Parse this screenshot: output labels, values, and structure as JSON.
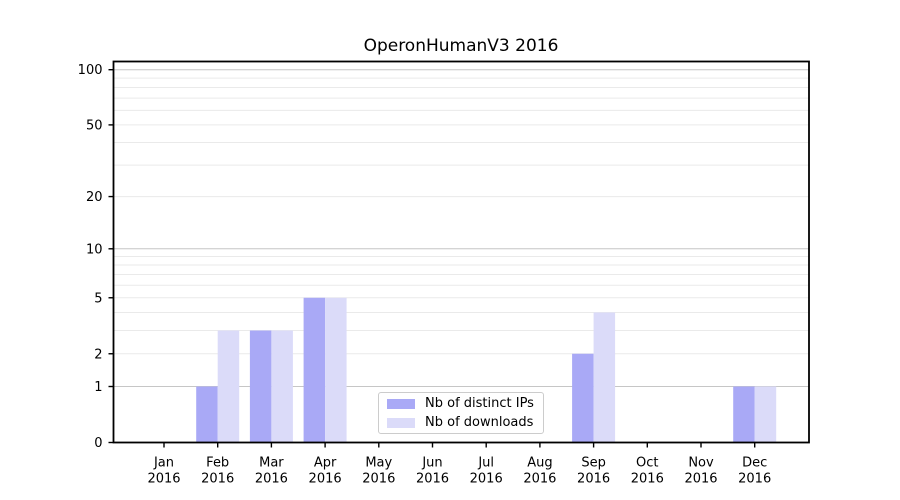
{
  "chart_data": {
    "type": "bar",
    "title": "OperonHumanV3 2016",
    "categories": [
      "Jan",
      "Feb",
      "Mar",
      "Apr",
      "May",
      "Jun",
      "Jul",
      "Aug",
      "Sep",
      "Oct",
      "Nov",
      "Dec"
    ],
    "category_year": "2016",
    "series": [
      {
        "name": "Nb of distinct IPs",
        "color": "#a9a9f6",
        "values": [
          0,
          1,
          3,
          5,
          0,
          0,
          0,
          0,
          2,
          0,
          0,
          1
        ]
      },
      {
        "name": "Nb of downloads",
        "color": "#dbdbf9",
        "values": [
          0,
          3,
          3,
          5,
          0,
          0,
          0,
          0,
          4,
          0,
          0,
          1
        ]
      }
    ],
    "y_axis": {
      "scale": "log1p",
      "tick_labels": [
        "0",
        "1",
        "2",
        "5",
        "10",
        "20",
        "50",
        "100"
      ],
      "tick_values": [
        0,
        1,
        2,
        5,
        10,
        20,
        50,
        100
      ],
      "major_gridlines": [
        1,
        10,
        100
      ],
      "minor_gridlines": [
        2,
        3,
        4,
        5,
        6,
        7,
        8,
        9,
        20,
        30,
        40,
        50,
        60,
        70,
        80,
        90
      ],
      "range": [
        0,
        100
      ]
    },
    "x_axis": {
      "label_line2": "2016"
    },
    "legend_position": "lower-center-inside",
    "grid": "horizontal",
    "colors": {
      "background": "#ffffff",
      "axis": "#000000",
      "text": "#000000",
      "major_grid": "#c6c6c6",
      "minor_grid": "#eaeaea"
    }
  }
}
